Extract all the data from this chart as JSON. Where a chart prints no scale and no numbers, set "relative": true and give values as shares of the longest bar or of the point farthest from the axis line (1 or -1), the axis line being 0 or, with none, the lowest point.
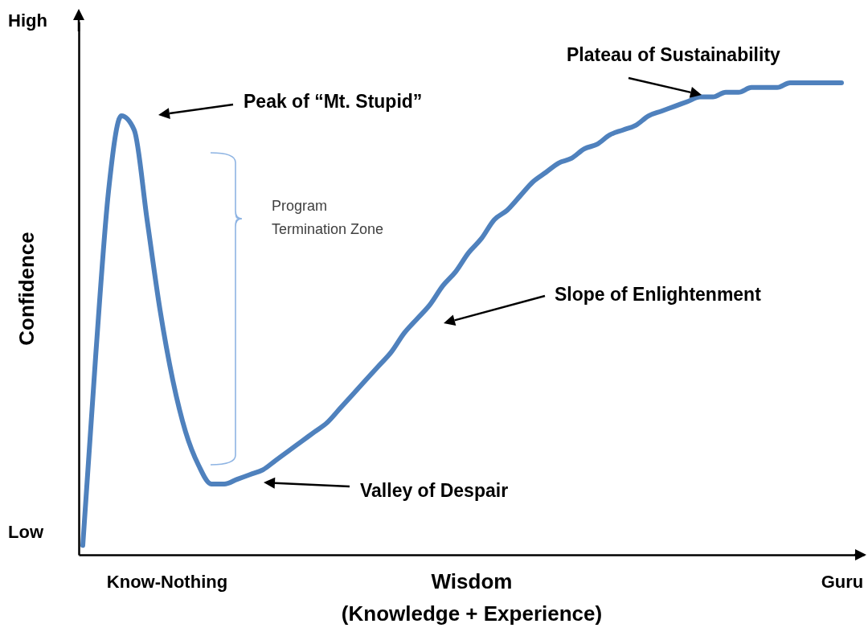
{
  "chart_data": {
    "type": "line",
    "relative": true,
    "xlabel": "Wisdom\n(Knowledge + Experience)",
    "ylabel": "Confidence",
    "categories": [
      null,
      null,
      null,
      null,
      null,
      null,
      null,
      null,
      null,
      null,
      null,
      null,
      null,
      null,
      null,
      null,
      null,
      null,
      null,
      null,
      null,
      null,
      null,
      null,
      null,
      null,
      null,
      null,
      null,
      null,
      null,
      null,
      null,
      null,
      null,
      null,
      null,
      null,
      null,
      null,
      null,
      null,
      null,
      null,
      null,
      null,
      null,
      null,
      null,
      null,
      null,
      null,
      null,
      null,
      null,
      null,
      null,
      null,
      null,
      null
    ],
    "series": [
      {
        "color": "#4f81bd",
        "values": [
          0.02,
          0.42,
          0.77,
          0.93,
          0.9,
          0.71,
          0.52,
          0.37,
          0.26,
          0.19,
          0.15,
          0.15,
          0.16,
          0.17,
          0.18,
          0.2,
          0.22,
          0.24,
          0.26,
          0.28,
          0.31,
          0.34,
          0.37,
          0.4,
          0.43,
          0.47,
          0.5,
          0.53,
          0.57,
          0.6,
          0.64,
          0.67,
          0.71,
          0.73,
          0.76,
          0.79,
          0.81,
          0.83,
          0.84,
          0.86,
          0.87,
          0.89,
          0.9,
          0.91,
          0.93,
          0.94,
          0.95,
          0.96,
          0.97,
          0.97,
          0.98,
          0.98,
          0.99,
          0.99,
          0.99,
          1.0,
          1.0,
          1.0,
          1.0,
          1.0
        ]
      }
    ],
    "grid": false,
    "marker": "none",
    "line_style": "solid",
    "annotations": [
      "Peak of “Mt. Stupid”",
      "Valley of Despair",
      "Slope of Enlightenment",
      "Plateau of Sustainability",
      "Program Termination Zone",
      "High",
      "Low",
      "Know-Nothing",
      "Guru"
    ]
  }
}
